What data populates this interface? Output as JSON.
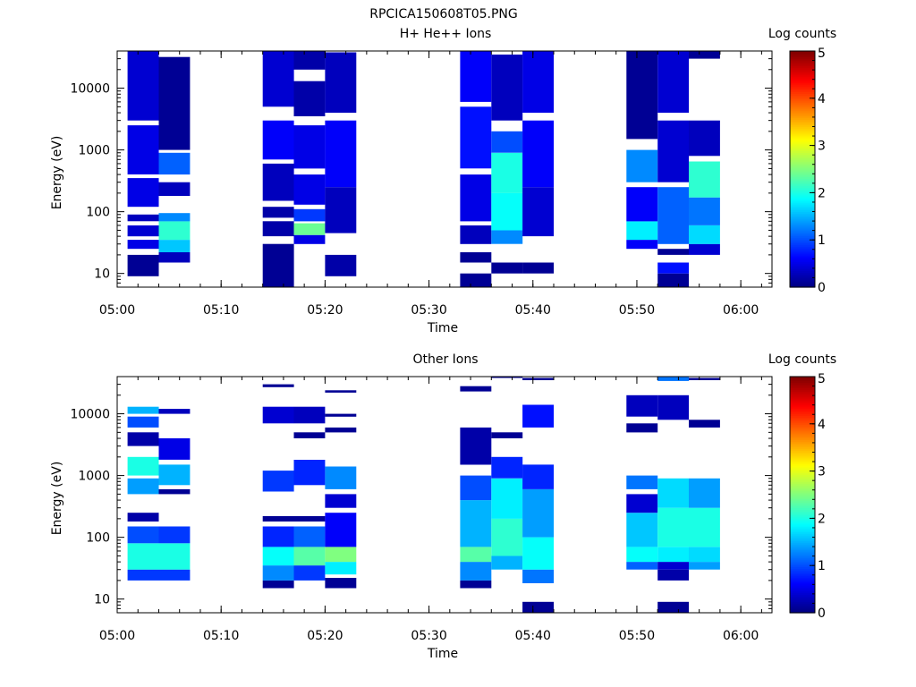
{
  "figure_title": "RPCICA150608T05.PNG",
  "chart_data": [
    {
      "type": "heatmap",
      "title": "H+ He++ Ions",
      "xlabel": "Time",
      "ylabel": "Energy (eV)",
      "y_scale": "log",
      "ylim": [
        6,
        40000
      ],
      "xlim": [
        "05:00",
        "06:03"
      ],
      "x_ticks": [
        "05:00",
        "05:10",
        "05:20",
        "05:30",
        "05:40",
        "05:50",
        "06:00"
      ],
      "y_ticks": [
        "10",
        "100",
        "1000",
        "10000"
      ],
      "colorbar": {
        "label": "Log counts",
        "ticks": [
          "0",
          "1",
          "2",
          "3",
          "4",
          "5"
        ],
        "range": [
          0,
          5
        ],
        "colormap": "jet"
      },
      "columns": [
        {
          "start": "05:01",
          "end": "05:04",
          "bands": [
            {
              "emin": 9,
              "emax": 20,
              "value": 0.1
            },
            {
              "emin": 25,
              "emax": 35,
              "value": 0.5
            },
            {
              "emin": 40,
              "emax": 60,
              "value": 0.4
            },
            {
              "emin": 70,
              "emax": 90,
              "value": 0.3
            },
            {
              "emin": 120,
              "emax": 350,
              "value": 0.5
            },
            {
              "emin": 400,
              "emax": 2500,
              "value": 0.5
            },
            {
              "emin": 3000,
              "emax": 40000,
              "value": 0.4
            }
          ]
        },
        {
          "start": "05:04",
          "end": "05:07",
          "bands": [
            {
              "emin": 15,
              "emax": 22,
              "value": 0.3
            },
            {
              "emin": 22,
              "emax": 35,
              "value": 1.6
            },
            {
              "emin": 35,
              "emax": 70,
              "value": 2.1
            },
            {
              "emin": 70,
              "emax": 95,
              "value": 1.3
            },
            {
              "emin": 180,
              "emax": 300,
              "value": 0.3
            },
            {
              "emin": 400,
              "emax": 900,
              "value": 1.1
            },
            {
              "emin": 1000,
              "emax": 32000,
              "value": 0.1
            }
          ]
        },
        {
          "start": "05:14",
          "end": "05:17",
          "bands": [
            {
              "emin": 6,
              "emax": 30,
              "value": 0.1
            },
            {
              "emin": 40,
              "emax": 70,
              "value": 0.2
            },
            {
              "emin": 80,
              "emax": 120,
              "value": 0.2
            },
            {
              "emin": 150,
              "emax": 600,
              "value": 0.3
            },
            {
              "emin": 700,
              "emax": 3000,
              "value": 0.6
            },
            {
              "emin": 5000,
              "emax": 40000,
              "value": 0.4
            }
          ]
        },
        {
          "start": "05:17",
          "end": "05:20",
          "bands": [
            {
              "emin": 30,
              "emax": 42,
              "value": 0.5
            },
            {
              "emin": 42,
              "emax": 65,
              "value": 2.4
            },
            {
              "emin": 70,
              "emax": 110,
              "value": 0.9
            },
            {
              "emin": 130,
              "emax": 400,
              "value": 0.5
            },
            {
              "emin": 500,
              "emax": 2500,
              "value": 0.5
            },
            {
              "emin": 3500,
              "emax": 13000,
              "value": 0.2
            },
            {
              "emin": 20000,
              "emax": 40000,
              "value": 0.2
            }
          ]
        },
        {
          "start": "05:20",
          "end": "05:23",
          "bands": [
            {
              "emin": 9,
              "emax": 20,
              "value": 0.2
            },
            {
              "emin": 45,
              "emax": 250,
              "value": 0.3
            },
            {
              "emin": 250,
              "emax": 3000,
              "value": 0.6
            },
            {
              "emin": 4000,
              "emax": 38000,
              "value": 0.3
            }
          ]
        },
        {
          "start": "05:33",
          "end": "05:36",
          "bands": [
            {
              "emin": 6,
              "emax": 10,
              "value": 0.1
            },
            {
              "emin": 15,
              "emax": 22,
              "value": 0.1
            },
            {
              "emin": 30,
              "emax": 60,
              "value": 0.3
            },
            {
              "emin": 70,
              "emax": 400,
              "value": 0.5
            },
            {
              "emin": 500,
              "emax": 5000,
              "value": 0.7
            },
            {
              "emin": 6000,
              "emax": 40000,
              "value": 0.6
            }
          ]
        },
        {
          "start": "05:36",
          "end": "05:39",
          "bands": [
            {
              "emin": 10,
              "emax": 15,
              "value": 0.1
            },
            {
              "emin": 30,
              "emax": 50,
              "value": 1.3
            },
            {
              "emin": 50,
              "emax": 200,
              "value": 1.9
            },
            {
              "emin": 200,
              "emax": 900,
              "value": 2.0
            },
            {
              "emin": 900,
              "emax": 2000,
              "value": 1.0
            },
            {
              "emin": 3000,
              "emax": 35000,
              "value": 0.3
            }
          ]
        },
        {
          "start": "05:39",
          "end": "05:42",
          "bands": [
            {
              "emin": 10,
              "emax": 15,
              "value": 0.1
            },
            {
              "emin": 40,
              "emax": 250,
              "value": 0.4
            },
            {
              "emin": 250,
              "emax": 3000,
              "value": 0.6
            },
            {
              "emin": 4000,
              "emax": 40000,
              "value": 0.5
            }
          ]
        },
        {
          "start": "05:49",
          "end": "05:52",
          "bands": [
            {
              "emin": 25,
              "emax": 35,
              "value": 0.6
            },
            {
              "emin": 35,
              "emax": 70,
              "value": 1.8
            },
            {
              "emin": 70,
              "emax": 250,
              "value": 0.6
            },
            {
              "emin": 300,
              "emax": 1000,
              "value": 1.3
            },
            {
              "emin": 1500,
              "emax": 40000,
              "value": 0.1
            }
          ]
        },
        {
          "start": "05:52",
          "end": "05:55",
          "bands": [
            {
              "emin": 6,
              "emax": 10,
              "value": 0.1
            },
            {
              "emin": 10,
              "emax": 15,
              "value": 0.7
            },
            {
              "emin": 20,
              "emax": 25,
              "value": 0.1
            },
            {
              "emin": 30,
              "emax": 250,
              "value": 1.1
            },
            {
              "emin": 300,
              "emax": 3000,
              "value": 0.4
            },
            {
              "emin": 4000,
              "emax": 40000,
              "value": 0.4
            }
          ]
        },
        {
          "start": "05:55",
          "end": "05:58",
          "bands": [
            {
              "emin": 20,
              "emax": 30,
              "value": 0.4
            },
            {
              "emin": 30,
              "emax": 60,
              "value": 1.7
            },
            {
              "emin": 60,
              "emax": 170,
              "value": 1.2
            },
            {
              "emin": 170,
              "emax": 650,
              "value": 2.1
            },
            {
              "emin": 800,
              "emax": 3000,
              "value": 0.3
            },
            {
              "emin": 30000,
              "emax": 40000,
              "value": 0.1
            }
          ]
        }
      ]
    },
    {
      "type": "heatmap",
      "title": "Other Ions",
      "xlabel": "Time",
      "ylabel": "Energy (eV)",
      "y_scale": "log",
      "ylim": [
        6,
        40000
      ],
      "xlim": [
        "05:00",
        "06:03"
      ],
      "x_ticks": [
        "05:00",
        "05:10",
        "05:20",
        "05:30",
        "05:40",
        "05:50",
        "06:00"
      ],
      "y_ticks": [
        "10",
        "100",
        "1000",
        "10000"
      ],
      "colorbar": {
        "label": "Log counts",
        "ticks": [
          "0",
          "1",
          "2",
          "3",
          "4",
          "5"
        ],
        "range": [
          0,
          5
        ],
        "colormap": "jet"
      },
      "columns": [
        {
          "start": "05:01",
          "end": "05:04",
          "bands": [
            {
              "emin": 20,
              "emax": 30,
              "value": 0.9
            },
            {
              "emin": 30,
              "emax": 80,
              "value": 2.0
            },
            {
              "emin": 80,
              "emax": 150,
              "value": 1.0
            },
            {
              "emin": 180,
              "emax": 250,
              "value": 0.2
            },
            {
              "emin": 500,
              "emax": 900,
              "value": 1.4
            },
            {
              "emin": 1000,
              "emax": 2000,
              "value": 2.0
            },
            {
              "emin": 3000,
              "emax": 5000,
              "value": 0.2
            },
            {
              "emin": 6000,
              "emax": 9000,
              "value": 1.0
            },
            {
              "emin": 10000,
              "emax": 13000,
              "value": 1.5
            }
          ]
        },
        {
          "start": "05:04",
          "end": "05:07",
          "bands": [
            {
              "emin": 20,
              "emax": 30,
              "value": 0.9
            },
            {
              "emin": 30,
              "emax": 80,
              "value": 2.0
            },
            {
              "emin": 80,
              "emax": 150,
              "value": 0.9
            },
            {
              "emin": 500,
              "emax": 600,
              "value": 0.1
            },
            {
              "emin": 700,
              "emax": 1500,
              "value": 1.5
            },
            {
              "emin": 1800,
              "emax": 4000,
              "value": 0.5
            },
            {
              "emin": 10000,
              "emax": 12000,
              "value": 0.3
            }
          ]
        },
        {
          "start": "05:14",
          "end": "05:17",
          "bands": [
            {
              "emin": 15,
              "emax": 20,
              "value": 0.1
            },
            {
              "emin": 20,
              "emax": 35,
              "value": 1.3
            },
            {
              "emin": 35,
              "emax": 70,
              "value": 1.9
            },
            {
              "emin": 70,
              "emax": 150,
              "value": 0.8
            },
            {
              "emin": 180,
              "emax": 220,
              "value": 0.1
            },
            {
              "emin": 550,
              "emax": 1200,
              "value": 0.9
            },
            {
              "emin": 7000,
              "emax": 13000,
              "value": 0.4
            },
            {
              "emin": 27000,
              "emax": 30000,
              "value": 0.1
            }
          ]
        },
        {
          "start": "05:17",
          "end": "05:20",
          "bands": [
            {
              "emin": 20,
              "emax": 35,
              "value": 0.9
            },
            {
              "emin": 35,
              "emax": 70,
              "value": 2.3
            },
            {
              "emin": 70,
              "emax": 150,
              "value": 1.1
            },
            {
              "emin": 180,
              "emax": 220,
              "value": 0.1
            },
            {
              "emin": 700,
              "emax": 1800,
              "value": 0.8
            },
            {
              "emin": 4000,
              "emax": 5000,
              "value": 0.1
            },
            {
              "emin": 7000,
              "emax": 13000,
              "value": 0.3
            }
          ]
        },
        {
          "start": "05:20",
          "end": "05:23",
          "bands": [
            {
              "emin": 15,
              "emax": 22,
              "value": 0.1
            },
            {
              "emin": 25,
              "emax": 40,
              "value": 1.8
            },
            {
              "emin": 40,
              "emax": 70,
              "value": 2.5
            },
            {
              "emin": 70,
              "emax": 250,
              "value": 0.6
            },
            {
              "emin": 300,
              "emax": 500,
              "value": 0.4
            },
            {
              "emin": 600,
              "emax": 1400,
              "value": 1.3
            },
            {
              "emin": 5000,
              "emax": 6000,
              "value": 0.1
            },
            {
              "emin": 9000,
              "emax": 10000,
              "value": 0.1
            },
            {
              "emin": 22000,
              "emax": 24000,
              "value": 0.1
            }
          ]
        },
        {
          "start": "05:33",
          "end": "05:36",
          "bands": [
            {
              "emin": 15,
              "emax": 20,
              "value": 0.1
            },
            {
              "emin": 20,
              "emax": 40,
              "value": 1.3
            },
            {
              "emin": 40,
              "emax": 70,
              "value": 2.3
            },
            {
              "emin": 70,
              "emax": 400,
              "value": 1.5
            },
            {
              "emin": 400,
              "emax": 1000,
              "value": 1.0
            },
            {
              "emin": 1500,
              "emax": 6000,
              "value": 0.2
            },
            {
              "emin": 23000,
              "emax": 28000,
              "value": 0.1
            }
          ]
        },
        {
          "start": "05:36",
          "end": "05:39",
          "bands": [
            {
              "emin": 30,
              "emax": 50,
              "value": 1.5
            },
            {
              "emin": 50,
              "emax": 200,
              "value": 2.1
            },
            {
              "emin": 200,
              "emax": 900,
              "value": 1.8
            },
            {
              "emin": 900,
              "emax": 2000,
              "value": 0.8
            },
            {
              "emin": 4000,
              "emax": 5000,
              "value": 0.1
            },
            {
              "emin": 38000,
              "emax": 40000,
              "value": 0.1
            }
          ]
        },
        {
          "start": "05:39",
          "end": "05:42",
          "bands": [
            {
              "emin": 6,
              "emax": 9,
              "value": 0.1
            },
            {
              "emin": 18,
              "emax": 30,
              "value": 1.2
            },
            {
              "emin": 30,
              "emax": 100,
              "value": 1.9
            },
            {
              "emin": 100,
              "emax": 600,
              "value": 1.4
            },
            {
              "emin": 600,
              "emax": 1500,
              "value": 0.8
            },
            {
              "emin": 6000,
              "emax": 14000,
              "value": 0.7
            },
            {
              "emin": 35000,
              "emax": 38000,
              "value": 0.1
            }
          ]
        },
        {
          "start": "05:49",
          "end": "05:52",
          "bands": [
            {
              "emin": 30,
              "emax": 40,
              "value": 1.1
            },
            {
              "emin": 40,
              "emax": 70,
              "value": 1.9
            },
            {
              "emin": 70,
              "emax": 250,
              "value": 1.6
            },
            {
              "emin": 250,
              "emax": 500,
              "value": 0.4
            },
            {
              "emin": 600,
              "emax": 1000,
              "value": 1.2
            },
            {
              "emin": 5000,
              "emax": 7000,
              "value": 0.1
            },
            {
              "emin": 9000,
              "emax": 20000,
              "value": 0.3
            }
          ]
        },
        {
          "start": "05:52",
          "end": "05:55",
          "bands": [
            {
              "emin": 6,
              "emax": 9,
              "value": 0.1
            },
            {
              "emin": 20,
              "emax": 30,
              "value": 0.2
            },
            {
              "emin": 30,
              "emax": 40,
              "value": 0.4
            },
            {
              "emin": 40,
              "emax": 70,
              "value": 1.8
            },
            {
              "emin": 70,
              "emax": 300,
              "value": 2.0
            },
            {
              "emin": 300,
              "emax": 900,
              "value": 1.7
            },
            {
              "emin": 8000,
              "emax": 20000,
              "value": 0.3
            },
            {
              "emin": 34000,
              "emax": 40000,
              "value": 1.2
            }
          ]
        },
        {
          "start": "05:55",
          "end": "05:58",
          "bands": [
            {
              "emin": 30,
              "emax": 40,
              "value": 1.4
            },
            {
              "emin": 40,
              "emax": 70,
              "value": 1.7
            },
            {
              "emin": 70,
              "emax": 300,
              "value": 2.0
            },
            {
              "emin": 300,
              "emax": 900,
              "value": 1.4
            },
            {
              "emin": 6000,
              "emax": 8000,
              "value": 0.1
            },
            {
              "emin": 35000,
              "emax": 38000,
              "value": 0.1
            }
          ]
        }
      ]
    }
  ]
}
